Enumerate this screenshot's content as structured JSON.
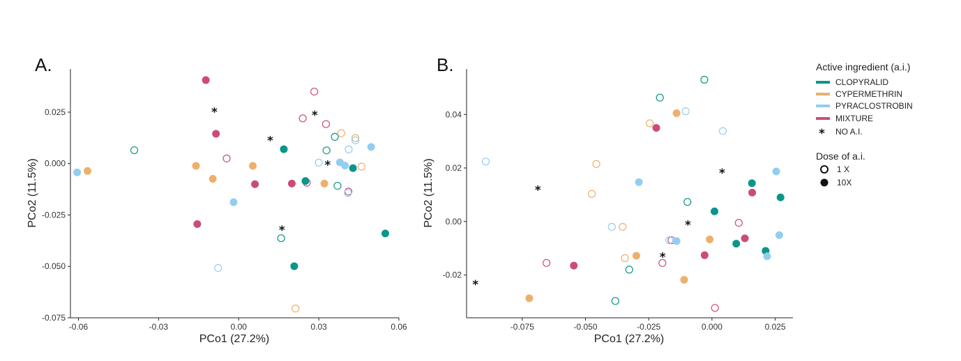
{
  "colors": {
    "CLOPYRALID": "#0a968a",
    "CYPERMETHRIN": "#edb06c",
    "PYRACLOSTROBIN": "#94cdf2",
    "MIXTURE": "#cc4c78",
    "NONE": "#111111"
  },
  "legend": {
    "title": "Active ingredient (a.i.)",
    "items": [
      {
        "key": "CLOPYRALID",
        "label": "CLOPYRALID"
      },
      {
        "key": "CYPERMETHRIN",
        "label": "CYPERMETHRIN"
      },
      {
        "key": "PYRACLOSTROBIN",
        "label": "PYRACLOSTROBIN"
      },
      {
        "key": "MIXTURE",
        "label": "MIXTURE"
      },
      {
        "key": "NONE",
        "label": "NO A.I."
      }
    ],
    "dose_title": "Dose of a.i.",
    "dose_items": [
      {
        "dose": "1X",
        "label": "1 X"
      },
      {
        "dose": "10X",
        "label": "10X"
      }
    ]
  },
  "chart_data": [
    {
      "type": "scatter",
      "panel": "A.",
      "xlabel": "PCo1 (27.2%)",
      "ylabel": "PCo2 (11.5%)",
      "xlim": [
        -0.063,
        0.06
      ],
      "ylim": [
        -0.075,
        0.046
      ],
      "xticks": [
        -0.06,
        -0.03,
        0.0,
        0.03,
        0.06
      ],
      "xtick_labels": [
        "-0.06",
        "-0.03",
        "0.00",
        "0.03",
        "0.06"
      ],
      "yticks": [
        -0.075,
        -0.05,
        -0.025,
        0.0,
        0.025
      ],
      "ytick_labels": [
        "-0.075",
        "-0.050",
        "-0.025",
        "0.000",
        "0.025"
      ],
      "grid": false,
      "points": [
        {
          "x": -0.0123,
          "y": 0.0406,
          "ai": "MIXTURE",
          "dose": "10X"
        },
        {
          "x": -0.0085,
          "y": 0.0145,
          "ai": "MIXTURE",
          "dose": "10X"
        },
        {
          "x": 0.0061,
          "y": -0.01,
          "ai": "MIXTURE",
          "dose": "10X"
        },
        {
          "x": 0.0199,
          "y": -0.0097,
          "ai": "MIXTURE",
          "dose": "10X"
        },
        {
          "x": -0.0155,
          "y": -0.0294,
          "ai": "MIXTURE",
          "dose": "10X"
        },
        {
          "x": 0.0283,
          "y": 0.035,
          "ai": "MIXTURE",
          "dose": "1X"
        },
        {
          "x": 0.024,
          "y": 0.022,
          "ai": "MIXTURE",
          "dose": "1X"
        },
        {
          "x": 0.0327,
          "y": 0.0192,
          "ai": "MIXTURE",
          "dose": "1X"
        },
        {
          "x": -0.0045,
          "y": 0.0025,
          "ai": "MIXTURE",
          "dose": "1X"
        },
        {
          "x": 0.0255,
          "y": -0.0093,
          "ai": "MIXTURE",
          "dose": "1X"
        },
        {
          "x": 0.0411,
          "y": -0.0136,
          "ai": "MIXTURE",
          "dose": "1X"
        },
        {
          "x": 0.0169,
          "y": 0.007,
          "ai": "CLOPYRALID",
          "dose": "10X"
        },
        {
          "x": 0.0428,
          "y": -0.0022,
          "ai": "CLOPYRALID",
          "dose": "10X"
        },
        {
          "x": 0.025,
          "y": -0.0085,
          "ai": "CLOPYRALID",
          "dose": "10X"
        },
        {
          "x": 0.0208,
          "y": -0.0499,
          "ai": "CLOPYRALID",
          "dose": "10X"
        },
        {
          "x": 0.0549,
          "y": -0.034,
          "ai": "CLOPYRALID",
          "dose": "10X"
        },
        {
          "x": -0.0391,
          "y": 0.0065,
          "ai": "CLOPYRALID",
          "dose": "1X"
        },
        {
          "x": 0.0329,
          "y": 0.0064,
          "ai": "CLOPYRALID",
          "dose": "1X"
        },
        {
          "x": 0.036,
          "y": 0.013,
          "ai": "CLOPYRALID",
          "dose": "1X"
        },
        {
          "x": 0.037,
          "y": -0.0108,
          "ai": "CLOPYRALID",
          "dose": "1X"
        },
        {
          "x": 0.0159,
          "y": -0.0363,
          "ai": "CLOPYRALID",
          "dose": "1X"
        },
        {
          "x": -0.0566,
          "y": -0.0036,
          "ai": "CYPERMETHRIN",
          "dose": "10X"
        },
        {
          "x": -0.016,
          "y": -0.0011,
          "ai": "CYPERMETHRIN",
          "dose": "10X"
        },
        {
          "x": -0.0097,
          "y": -0.0074,
          "ai": "CYPERMETHRIN",
          "dose": "10X"
        },
        {
          "x": 0.0053,
          "y": -0.0011,
          "ai": "CYPERMETHRIN",
          "dose": "10X"
        },
        {
          "x": 0.0321,
          "y": -0.0097,
          "ai": "CYPERMETHRIN",
          "dose": "10X"
        },
        {
          "x": 0.0384,
          "y": 0.0148,
          "ai": "CYPERMETHRIN",
          "dose": "1X"
        },
        {
          "x": 0.0437,
          "y": 0.0124,
          "ai": "CYPERMETHRIN",
          "dose": "1X"
        },
        {
          "x": 0.046,
          "y": -0.0015,
          "ai": "CYPERMETHRIN",
          "dose": "1X"
        },
        {
          "x": 0.0213,
          "y": -0.0705,
          "ai": "CYPERMETHRIN",
          "dose": "1X"
        },
        {
          "x": -0.0605,
          "y": -0.0043,
          "ai": "PYRACLOSTROBIN",
          "dose": "10X"
        },
        {
          "x": -0.0019,
          "y": -0.0188,
          "ai": "PYRACLOSTROBIN",
          "dose": "10X"
        },
        {
          "x": 0.0379,
          "y": 0.0006,
          "ai": "PYRACLOSTROBIN",
          "dose": "10X"
        },
        {
          "x": 0.0398,
          "y": -0.001,
          "ai": "PYRACLOSTROBIN",
          "dose": "10X"
        },
        {
          "x": 0.0496,
          "y": 0.0081,
          "ai": "PYRACLOSTROBIN",
          "dose": "10X"
        },
        {
          "x": 0.03,
          "y": 0.0005,
          "ai": "PYRACLOSTROBIN",
          "dose": "1X"
        },
        {
          "x": 0.0412,
          "y": 0.0069,
          "ai": "PYRACLOSTROBIN",
          "dose": "1X"
        },
        {
          "x": 0.0437,
          "y": 0.0113,
          "ai": "PYRACLOSTROBIN",
          "dose": "1X"
        },
        {
          "x": 0.0409,
          "y": -0.0143,
          "ai": "PYRACLOSTROBIN",
          "dose": "1X"
        },
        {
          "x": -0.0077,
          "y": -0.0508,
          "ai": "PYRACLOSTROBIN",
          "dose": "1X"
        },
        {
          "x": -0.0091,
          "y": 0.0255,
          "ai": "NONE",
          "dose": "NONE"
        },
        {
          "x": 0.0118,
          "y": 0.0116,
          "ai": "NONE",
          "dose": "NONE"
        },
        {
          "x": 0.0285,
          "y": 0.024,
          "ai": "NONE",
          "dose": "NONE"
        },
        {
          "x": 0.0333,
          "y": -0.0003,
          "ai": "NONE",
          "dose": "NONE"
        },
        {
          "x": 0.0162,
          "y": -0.032,
          "ai": "NONE",
          "dose": "NONE"
        }
      ]
    },
    {
      "type": "scatter",
      "panel": "B.",
      "xlabel": "PCo1 (27.2%)",
      "ylabel": "PCo2 (11.5%)",
      "xlim": [
        -0.097,
        0.032
      ],
      "ylim": [
        -0.036,
        0.057
      ],
      "xticks": [
        -0.075,
        -0.05,
        -0.025,
        0.0,
        0.025
      ],
      "xtick_labels": [
        "-0.075",
        "-0.050",
        "-0.025",
        "0.000",
        "0.025"
      ],
      "yticks": [
        -0.02,
        0.0,
        0.02,
        0.04
      ],
      "ytick_labels": [
        "-0.02",
        "0.00",
        "0.02",
        "0.04"
      ],
      "grid": false,
      "points": [
        {
          "x": -0.022,
          "y": 0.035,
          "ai": "MIXTURE",
          "dose": "10X"
        },
        {
          "x": -0.0546,
          "y": -0.0165,
          "ai": "MIXTURE",
          "dose": "10X"
        },
        {
          "x": -0.0029,
          "y": -0.0126,
          "ai": "MIXTURE",
          "dose": "10X"
        },
        {
          "x": 0.013,
          "y": -0.0063,
          "ai": "MIXTURE",
          "dose": "10X"
        },
        {
          "x": 0.0159,
          "y": 0.0108,
          "ai": "MIXTURE",
          "dose": "10X"
        },
        {
          "x": -0.0654,
          "y": -0.0155,
          "ai": "MIXTURE",
          "dose": "1X"
        },
        {
          "x": -0.0196,
          "y": -0.0155,
          "ai": "MIXTURE",
          "dose": "1X"
        },
        {
          "x": -0.016,
          "y": -0.007,
          "ai": "MIXTURE",
          "dose": "1X"
        },
        {
          "x": 0.0106,
          "y": -0.0005,
          "ai": "MIXTURE",
          "dose": "1X"
        },
        {
          "x": 0.0012,
          "y": -0.0323,
          "ai": "MIXTURE",
          "dose": "1X"
        },
        {
          "x": 0.001,
          "y": 0.0038,
          "ai": "CLOPYRALID",
          "dose": "10X"
        },
        {
          "x": 0.0096,
          "y": -0.0083,
          "ai": "CLOPYRALID",
          "dose": "10X"
        },
        {
          "x": 0.0158,
          "y": 0.0143,
          "ai": "CLOPYRALID",
          "dose": "10X"
        },
        {
          "x": 0.0212,
          "y": -0.011,
          "ai": "CLOPYRALID",
          "dose": "10X"
        },
        {
          "x": 0.0271,
          "y": 0.009,
          "ai": "CLOPYRALID",
          "dose": "10X"
        },
        {
          "x": -0.0206,
          "y": 0.0463,
          "ai": "CLOPYRALID",
          "dose": "1X"
        },
        {
          "x": -0.003,
          "y": 0.053,
          "ai": "CLOPYRALID",
          "dose": "1X"
        },
        {
          "x": -0.0097,
          "y": 0.0073,
          "ai": "CLOPYRALID",
          "dose": "1X"
        },
        {
          "x": -0.0327,
          "y": -0.018,
          "ai": "CLOPYRALID",
          "dose": "1X"
        },
        {
          "x": -0.0382,
          "y": -0.0297,
          "ai": "CLOPYRALID",
          "dose": "1X"
        },
        {
          "x": -0.014,
          "y": 0.0405,
          "ai": "CYPERMETHRIN",
          "dose": "10X"
        },
        {
          "x": -0.0299,
          "y": -0.0128,
          "ai": "CYPERMETHRIN",
          "dose": "10X"
        },
        {
          "x": -0.011,
          "y": -0.0218,
          "ai": "CYPERMETHRIN",
          "dose": "10X"
        },
        {
          "x": -0.0009,
          "y": -0.0067,
          "ai": "CYPERMETHRIN",
          "dose": "10X"
        },
        {
          "x": -0.0722,
          "y": -0.0287,
          "ai": "CYPERMETHRIN",
          "dose": "10X"
        },
        {
          "x": -0.0246,
          "y": 0.0367,
          "ai": "CYPERMETHRIN",
          "dose": "1X"
        },
        {
          "x": -0.0457,
          "y": 0.0215,
          "ai": "CYPERMETHRIN",
          "dose": "1X"
        },
        {
          "x": -0.0475,
          "y": 0.0103,
          "ai": "CYPERMETHRIN",
          "dose": "1X"
        },
        {
          "x": -0.0353,
          "y": -0.002,
          "ai": "CYPERMETHRIN",
          "dose": "1X"
        },
        {
          "x": -0.0344,
          "y": -0.0137,
          "ai": "CYPERMETHRIN",
          "dose": "1X"
        },
        {
          "x": -0.0289,
          "y": 0.0147,
          "ai": "PYRACLOSTROBIN",
          "dose": "10X"
        },
        {
          "x": -0.014,
          "y": -0.0073,
          "ai": "PYRACLOSTROBIN",
          "dose": "10X"
        },
        {
          "x": 0.0254,
          "y": 0.0187,
          "ai": "PYRACLOSTROBIN",
          "dose": "10X"
        },
        {
          "x": 0.0266,
          "y": -0.0051,
          "ai": "PYRACLOSTROBIN",
          "dose": "10X"
        },
        {
          "x": 0.0218,
          "y": -0.013,
          "ai": "PYRACLOSTROBIN",
          "dose": "10X"
        },
        {
          "x": -0.0104,
          "y": 0.0412,
          "ai": "PYRACLOSTROBIN",
          "dose": "1X"
        },
        {
          "x": 0.0043,
          "y": 0.0338,
          "ai": "PYRACLOSTROBIN",
          "dose": "1X"
        },
        {
          "x": -0.0894,
          "y": 0.0224,
          "ai": "PYRACLOSTROBIN",
          "dose": "1X"
        },
        {
          "x": -0.0396,
          "y": -0.002,
          "ai": "PYRACLOSTROBIN",
          "dose": "1X"
        },
        {
          "x": -0.0169,
          "y": -0.007,
          "ai": "PYRACLOSTROBIN",
          "dose": "1X"
        },
        {
          "x": -0.0688,
          "y": 0.012,
          "ai": "NONE",
          "dose": "NONE"
        },
        {
          "x": 0.004,
          "y": 0.0185,
          "ai": "NONE",
          "dose": "NONE"
        },
        {
          "x": -0.0095,
          "y": -0.001,
          "ai": "NONE",
          "dose": "NONE"
        },
        {
          "x": -0.0195,
          "y": -0.013,
          "ai": "NONE",
          "dose": "NONE"
        },
        {
          "x": -0.0935,
          "y": -0.0233,
          "ai": "NONE",
          "dose": "NONE"
        }
      ]
    }
  ]
}
